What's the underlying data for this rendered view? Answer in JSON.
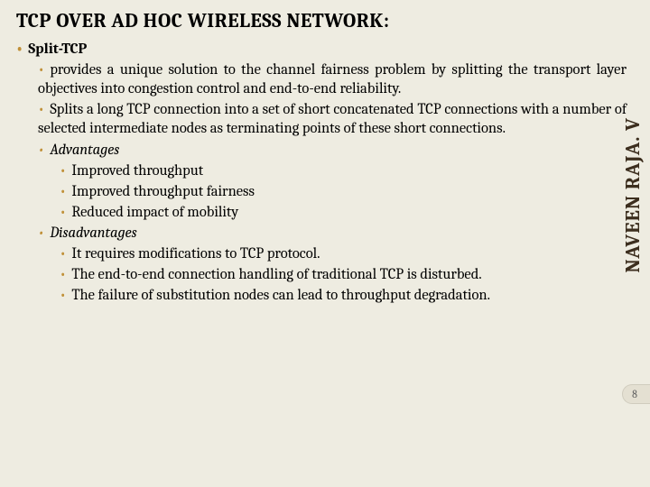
{
  "background_color": "#eeece1",
  "title": "TCP OVER AD HOC WIRELESS NETWORK:",
  "sidebar_author": "NAVEEN RAJA. V",
  "page_number": "8",
  "bullet_color": "#c09038",
  "l1": {
    "label": "Split-TCP"
  },
  "l2": {
    "item0": "provides a unique solution to the channel fairness problem by splitting the transport layer objectives into congestion control and end-to-end reliability.",
    "item1": "Splits a long TCP connection into a set of short concatenated TCP connections with a number of selected intermediate nodes as terminating points of these short connections.",
    "adv_label": "Advantages",
    "dis_label": "Disadvantages"
  },
  "l3": {
    "adv0": "Improved throughput",
    "adv1": "Improved throughput fairness",
    "adv2": "Reduced impact of mobility",
    "dis0": "It requires modifications to TCP protocol.",
    "dis1": "The end-to-end connection handling of traditional TCP is disturbed.",
    "dis2": "The failure of substitution nodes can lead to throughput degradation."
  }
}
